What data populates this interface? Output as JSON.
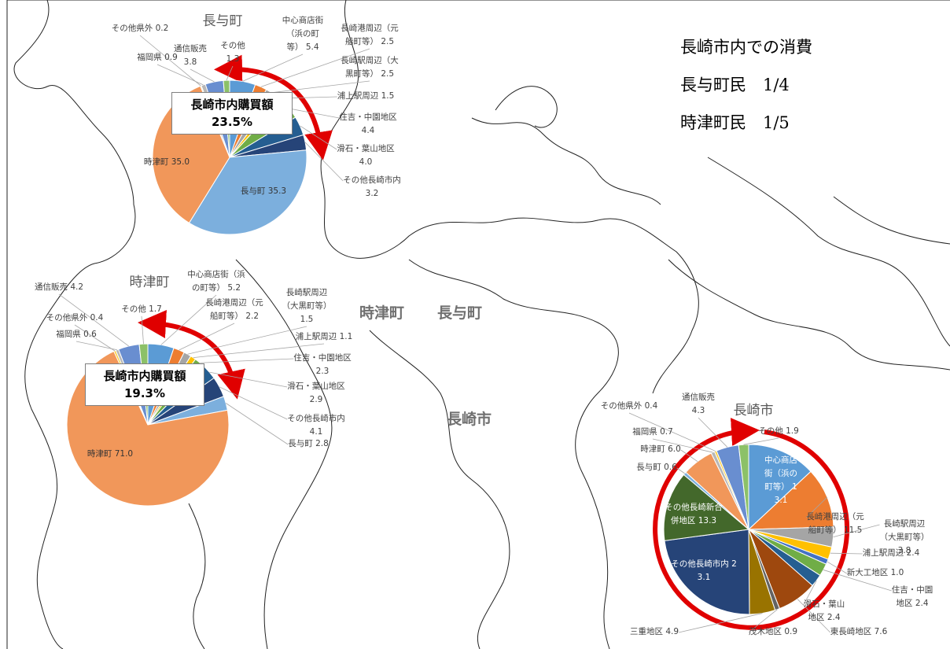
{
  "chart_data": [
    {
      "type": "pie",
      "title": "長与町",
      "callout": {
        "label": "長崎市内購買額",
        "value": "23.5%"
      },
      "categories": [
        "中心商店街（浜の町等）",
        "長崎港周辺（元船町等）",
        "長崎駅周辺（大黒町等）",
        "浦上駅周辺",
        "住吉・中園地区",
        "滑石・葉山地区",
        "その他長崎市内",
        "長与町",
        "時津町",
        "その他県外",
        "福岡県",
        "通信販売",
        "その他"
      ],
      "values": [
        5.4,
        2.5,
        2.5,
        1.5,
        4.4,
        4.0,
        3.2,
        35.3,
        35.0,
        0.2,
        0.9,
        3.8,
        1.3
      ],
      "value_labels": [
        "5.4",
        "2.5",
        "2.5",
        "1.5",
        "4.4",
        "4.0",
        "3.2",
        "35.3",
        "35.0",
        "0.2",
        "0.9",
        "3.8",
        "1.3"
      ],
      "colors": [
        "#5b9bd5",
        "#ed7d31",
        "#a5a5a5",
        "#ffc000",
        "#70ad47",
        "#255e91",
        "#264478",
        "#7cafdd",
        "#f1975a",
        "#ffcd33",
        "#b7b7b7",
        "#698ed0",
        "#8cc168"
      ]
    },
    {
      "type": "pie",
      "title": "時津町",
      "callout": {
        "label": "長崎市内購買額",
        "value": "19.3%"
      },
      "categories": [
        "中心商店街（浜の町等）",
        "長崎港周辺（元船町等）",
        "長崎駅周辺（大黒町等）",
        "浦上駅周辺",
        "住吉・中園地区",
        "滑石・葉山地区",
        "その他長崎市内",
        "長与町",
        "時津町",
        "その他県外",
        "福岡県",
        "通信販売",
        "その他"
      ],
      "values": [
        5.2,
        2.2,
        1.5,
        1.1,
        2.3,
        2.9,
        4.1,
        2.8,
        71.0,
        0.4,
        0.6,
        4.2,
        1.7
      ],
      "value_labels": [
        "5.2",
        "2.2",
        "1.5",
        "1.1",
        "2.3",
        "2.9",
        "4.1",
        "2.8",
        "71.0",
        "0.4",
        "0.6",
        "4.2",
        "1.7"
      ],
      "colors": [
        "#5b9bd5",
        "#ed7d31",
        "#a5a5a5",
        "#ffc000",
        "#70ad47",
        "#255e91",
        "#264478",
        "#7cafdd",
        "#f1975a",
        "#ffcd33",
        "#b7b7b7",
        "#698ed0",
        "#8cc168"
      ]
    },
    {
      "type": "pie",
      "title": "長崎市",
      "categories": [
        "中心商店街（浜の町等）",
        "長崎港周辺（元船町等）",
        "長崎駅周辺（大黒町等）",
        "浦上駅周辺",
        "新大工地区",
        "住吉・中園地区",
        "滑石・葉山地区",
        "東長崎地区",
        "茂木地区",
        "三重地区",
        "その他長崎市内",
        "その他長崎新合併地区",
        "長与町",
        "時津町",
        "福岡県",
        "その他県外",
        "通信販売",
        "その他"
      ],
      "values": [
        13.1,
        11.5,
        3.8,
        2.4,
        1.0,
        2.4,
        2.4,
        7.6,
        0.9,
        4.9,
        23.1,
        13.3,
        0.6,
        6.0,
        0.7,
        0.4,
        4.3,
        1.9
      ],
      "value_labels": [
        "13.1",
        "11.5",
        "3.8",
        "2.4",
        "1.0",
        "2.4",
        "2.4",
        "7.6",
        "0.9",
        "4.9",
        "23.1",
        "13.3",
        "0.6",
        "6.0",
        "0.7",
        "0.4",
        "4.3",
        "1.9"
      ],
      "colors": [
        "#5b9bd5",
        "#ed7d31",
        "#a5a5a5",
        "#ffc000",
        "#4472c4",
        "#70ad47",
        "#255e91",
        "#9e480e",
        "#636363",
        "#997300",
        "#264478",
        "#43682b",
        "#7cafdd",
        "#f1975a",
        "#b7b7b7",
        "#ffcd33",
        "#698ed0",
        "#8cc168"
      ]
    }
  ],
  "annotations": [
    "長崎市内での消費",
    "長与町民　1/4",
    "時津町民　1/5"
  ],
  "map_labels": [
    "時津町",
    "長与町",
    "長崎市"
  ]
}
